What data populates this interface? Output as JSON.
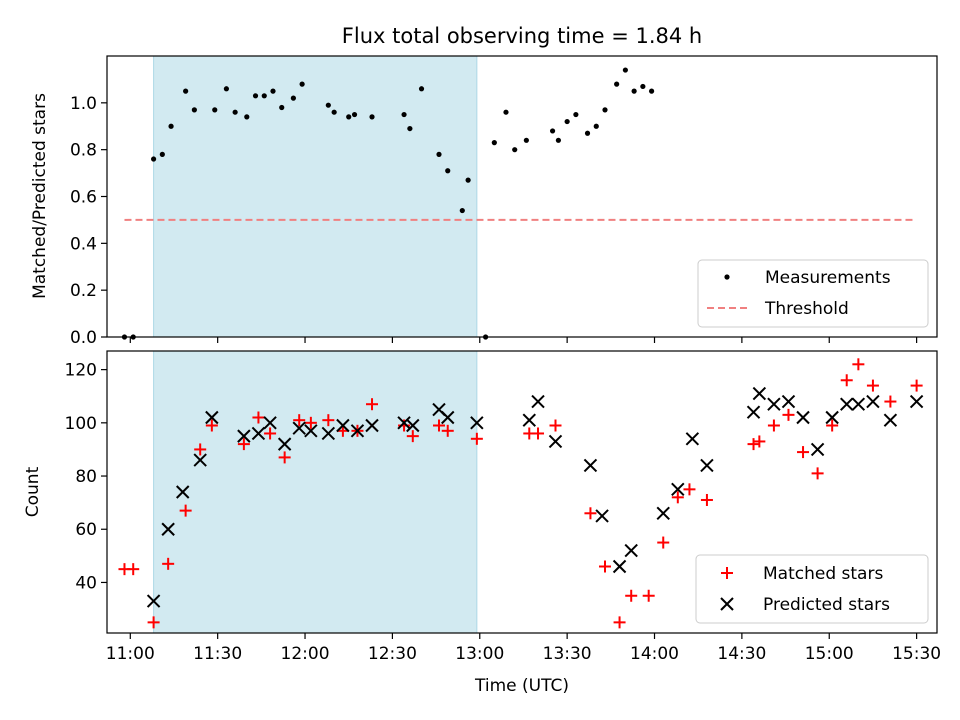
{
  "title": "Flux total observing time = 1.84 h",
  "colors": {
    "measurement": "#000000",
    "threshold": "#f08080",
    "matched": "#ff0000",
    "predicted": "#000000",
    "shade": "#add8e6"
  },
  "chart_data": [
    {
      "type": "scatter",
      "ylabel": "Matched/Predicted stars",
      "xlabel": "",
      "xlim": [
        "10:52",
        "15:37"
      ],
      "ylim": [
        0,
        1.2
      ],
      "yticks": [
        0.0,
        0.2,
        0.4,
        0.6,
        0.8,
        1.0
      ],
      "shaded_span": [
        "11:08",
        "12:59"
      ],
      "legend": {
        "position": "lower-right",
        "entries": [
          "Measurements",
          "Threshold"
        ]
      },
      "threshold": {
        "name": "Threshold",
        "y": 0.5,
        "x": [
          "10:58",
          "15:29"
        ]
      },
      "series": [
        {
          "name": "Measurements",
          "points": [
            [
              "10:58",
              0.0
            ],
            [
              "11:01",
              0.0
            ],
            [
              "11:08",
              0.76
            ],
            [
              "11:11",
              0.78
            ],
            [
              "11:14",
              0.9
            ],
            [
              "11:19",
              1.05
            ],
            [
              "11:22",
              0.97
            ],
            [
              "11:29",
              0.97
            ],
            [
              "11:33",
              1.06
            ],
            [
              "11:36",
              0.96
            ],
            [
              "11:40",
              0.94
            ],
            [
              "11:43",
              1.03
            ],
            [
              "11:46",
              1.03
            ],
            [
              "11:49",
              1.05
            ],
            [
              "11:52",
              0.98
            ],
            [
              "11:56",
              1.02
            ],
            [
              "11:59",
              1.08
            ],
            [
              "12:08",
              0.99
            ],
            [
              "12:10",
              0.96
            ],
            [
              "12:15",
              0.94
            ],
            [
              "12:17",
              0.95
            ],
            [
              "12:23",
              0.94
            ],
            [
              "12:34",
              0.95
            ],
            [
              "12:36",
              0.89
            ],
            [
              "12:40",
              1.06
            ],
            [
              "12:46",
              0.78
            ],
            [
              "12:49",
              0.71
            ],
            [
              "12:54",
              0.54
            ],
            [
              "12:56",
              0.67
            ],
            [
              "13:02",
              0.0
            ],
            [
              "13:05",
              0.83
            ],
            [
              "13:09",
              0.96
            ],
            [
              "13:12",
              0.8
            ],
            [
              "13:16",
              0.84
            ],
            [
              "13:25",
              0.88
            ],
            [
              "13:27",
              0.84
            ],
            [
              "13:30",
              0.92
            ],
            [
              "13:33",
              0.95
            ],
            [
              "13:37",
              0.87
            ],
            [
              "13:40",
              0.9
            ],
            [
              "13:43",
              0.97
            ],
            [
              "13:47",
              1.08
            ],
            [
              "13:50",
              1.14
            ],
            [
              "13:53",
              1.05
            ],
            [
              "13:56",
              1.07
            ],
            [
              "13:59",
              1.05
            ]
          ]
        }
      ]
    },
    {
      "type": "scatter",
      "ylabel": "Count",
      "xlabel": "Time (UTC)",
      "xlim": [
        "10:52",
        "15:37"
      ],
      "ylim": [
        21,
        127
      ],
      "yticks": [
        40,
        60,
        80,
        100,
        120
      ],
      "xticks": [
        "11:00",
        "11:30",
        "12:00",
        "12:30",
        "13:00",
        "13:30",
        "14:00",
        "14:30",
        "15:00",
        "15:30"
      ],
      "shaded_span": [
        "11:08",
        "12:59"
      ],
      "legend": {
        "position": "lower-right",
        "entries": [
          "Matched stars",
          "Predicted stars"
        ]
      },
      "series": [
        {
          "name": "Matched stars",
          "points": [
            [
              "10:58",
              45
            ],
            [
              "11:01",
              45
            ],
            [
              "11:08",
              25
            ],
            [
              "11:13",
              47
            ],
            [
              "11:19",
              67
            ],
            [
              "11:24",
              90
            ],
            [
              "11:28",
              99
            ],
            [
              "11:39",
              92
            ],
            [
              "11:44",
              102
            ],
            [
              "11:48",
              96
            ],
            [
              "11:53",
              87
            ],
            [
              "11:58",
              101
            ],
            [
              "12:02",
              100
            ],
            [
              "12:08",
              101
            ],
            [
              "12:13",
              97
            ],
            [
              "12:18",
              97
            ],
            [
              "12:23",
              107
            ],
            [
              "12:34",
              99
            ],
            [
              "12:37",
              95
            ],
            [
              "12:46",
              99
            ],
            [
              "12:49",
              97
            ],
            [
              "12:59",
              94
            ],
            [
              "13:17",
              96
            ],
            [
              "13:20",
              96
            ],
            [
              "13:26",
              99
            ],
            [
              "13:38",
              66
            ],
            [
              "13:43",
              46
            ],
            [
              "13:48",
              25
            ],
            [
              "13:52",
              35
            ],
            [
              "13:58",
              35
            ],
            [
              "14:03",
              55
            ],
            [
              "14:08",
              72
            ],
            [
              "14:12",
              75
            ],
            [
              "14:18",
              71
            ],
            [
              "14:34",
              92
            ],
            [
              "14:36",
              93
            ],
            [
              "14:41",
              99
            ],
            [
              "14:46",
              103
            ],
            [
              "14:51",
              89
            ],
            [
              "14:56",
              81
            ],
            [
              "15:01",
              99
            ],
            [
              "15:06",
              116
            ],
            [
              "15:10",
              122
            ],
            [
              "15:15",
              114
            ],
            [
              "15:21",
              108
            ],
            [
              "15:30",
              114
            ]
          ]
        },
        {
          "name": "Predicted stars",
          "points": [
            [
              "11:08",
              33
            ],
            [
              "11:13",
              60
            ],
            [
              "11:18",
              74
            ],
            [
              "11:24",
              86
            ],
            [
              "11:28",
              102
            ],
            [
              "11:39",
              95
            ],
            [
              "11:44",
              96
            ],
            [
              "11:48",
              100
            ],
            [
              "11:53",
              92
            ],
            [
              "11:58",
              98
            ],
            [
              "12:02",
              97
            ],
            [
              "12:08",
              96
            ],
            [
              "12:13",
              99
            ],
            [
              "12:18",
              97
            ],
            [
              "12:23",
              99
            ],
            [
              "12:34",
              100
            ],
            [
              "12:37",
              99
            ],
            [
              "12:46",
              105
            ],
            [
              "12:49",
              102
            ],
            [
              "12:59",
              100
            ],
            [
              "13:17",
              101
            ],
            [
              "13:20",
              108
            ],
            [
              "13:26",
              93
            ],
            [
              "13:38",
              84
            ],
            [
              "13:42",
              65
            ],
            [
              "13:48",
              46
            ],
            [
              "13:52",
              52
            ],
            [
              "14:03",
              66
            ],
            [
              "14:08",
              75
            ],
            [
              "14:13",
              94
            ],
            [
              "14:18",
              84
            ],
            [
              "14:34",
              104
            ],
            [
              "14:36",
              111
            ],
            [
              "14:41",
              107
            ],
            [
              "14:46",
              108
            ],
            [
              "14:51",
              102
            ],
            [
              "14:56",
              90
            ],
            [
              "15:01",
              102
            ],
            [
              "15:06",
              107
            ],
            [
              "15:10",
              107
            ],
            [
              "15:15",
              108
            ],
            [
              "15:21",
              101
            ],
            [
              "15:30",
              108
            ]
          ]
        }
      ]
    }
  ]
}
